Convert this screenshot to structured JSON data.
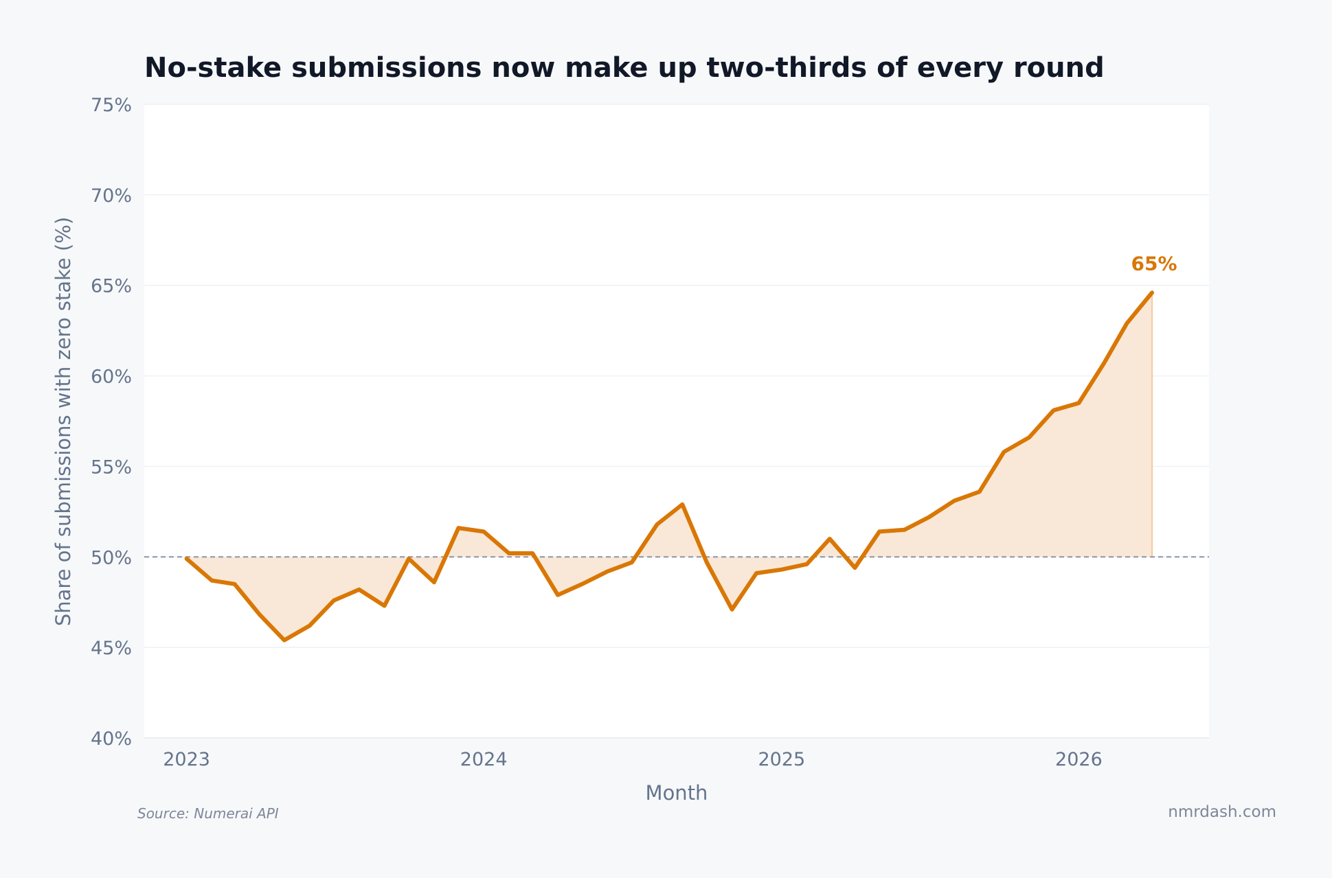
{
  "chart_data": {
    "type": "area",
    "title": "No-stake submissions now make up two-thirds of every round",
    "xlabel": "Month",
    "ylabel": "Share of submissions with zero stake (%)",
    "ylim": [
      40,
      75
    ],
    "yticks": [
      40,
      45,
      50,
      55,
      60,
      65,
      70,
      75
    ],
    "ytick_labels": [
      "40%",
      "45%",
      "50%",
      "55%",
      "60%",
      "65%",
      "70%",
      "75%"
    ],
    "xlim": [
      "2022-11-10",
      "2026-06-10"
    ],
    "xticks": [
      "2023-01-01",
      "2024-01-01",
      "2025-01-01",
      "2026-01-01"
    ],
    "xtick_labels": [
      "2023",
      "2024",
      "2025",
      "2026"
    ],
    "reference_line": 50,
    "grid": true,
    "series": [
      {
        "x": [
          "2023-01",
          "2023-02",
          "2023-03",
          "2023-04",
          "2023-05",
          "2023-06",
          "2023-07",
          "2023-08",
          "2023-09",
          "2023-10",
          "2023-11",
          "2023-12",
          "2024-01",
          "2024-02",
          "2024-03",
          "2024-04",
          "2024-05",
          "2024-06",
          "2024-07",
          "2024-08",
          "2024-09",
          "2024-10",
          "2024-11",
          "2024-12",
          "2025-01",
          "2025-02",
          "2025-03",
          "2025-04",
          "2025-05",
          "2025-06",
          "2025-07",
          "2025-08",
          "2025-09",
          "2025-10",
          "2025-11",
          "2025-12",
          "2026-01",
          "2026-02",
          "2026-03",
          "2026-04"
        ],
        "values": [
          49.9,
          48.7,
          48.5,
          46.8,
          45.4,
          46.2,
          47.6,
          48.2,
          47.3,
          49.9,
          48.6,
          51.6,
          51.4,
          50.2,
          50.2,
          47.9,
          48.5,
          49.2,
          49.7,
          51.8,
          52.9,
          49.7,
          47.1,
          49.1,
          49.3,
          49.6,
          51.0,
          49.4,
          51.4,
          51.5,
          52.2,
          53.1,
          53.6,
          55.8,
          56.6,
          58.1,
          58.5,
          60.7,
          62.9,
          64.6
        ]
      }
    ],
    "end_label": "65%",
    "colors": {
      "line": "#d97706",
      "fill": "#f9e8d7",
      "reference": "#8a94a6",
      "title": "#111827",
      "axis_text": "#64748b",
      "plot_bg": "#ffffff",
      "page_bg": "#f7f8fa",
      "gridline": "#eef1f4"
    }
  },
  "footer": {
    "source": "Source: Numerai API",
    "site": "nmrdash.com"
  }
}
